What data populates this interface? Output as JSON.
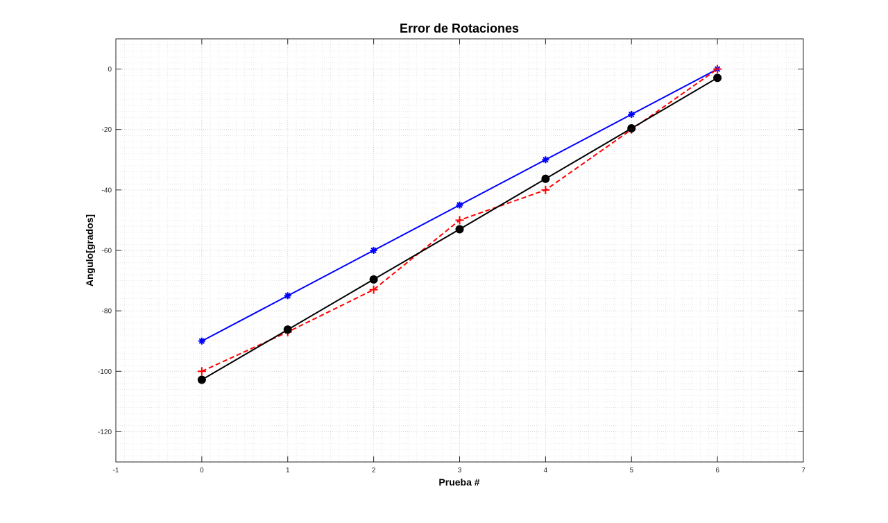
{
  "chart_data": {
    "type": "line",
    "title": "Error de Rotaciones",
    "xlabel": "Prueba #",
    "ylabel": "Angulo[grados]",
    "xlim": [
      -1,
      7
    ],
    "ylim": [
      -130,
      10
    ],
    "xticks": [
      -1,
      0,
      1,
      2,
      3,
      4,
      5,
      6,
      7
    ],
    "yticks": [
      -120,
      -100,
      -80,
      -60,
      -40,
      -20,
      0
    ],
    "grid": "on",
    "minor_grid": "on",
    "x": [
      0,
      1,
      2,
      3,
      4,
      5,
      6
    ],
    "series": [
      {
        "color": "#0000ff",
        "line_style": "solid",
        "marker": "asterisk",
        "values": [
          -90,
          -75,
          -60,
          -45,
          -30,
          -15,
          0
        ]
      },
      {
        "color": "#ff0000",
        "line_style": "dashed",
        "marker": "plus",
        "values": [
          -100,
          -87,
          -73,
          -50,
          -40,
          -20,
          0
        ]
      },
      {
        "color": "#000000",
        "line_style": "solid",
        "marker": "filled-circle",
        "values": [
          -102.8,
          -86.2,
          -69.6,
          -53,
          -36.3,
          -19.6,
          -2.9
        ]
      }
    ]
  }
}
